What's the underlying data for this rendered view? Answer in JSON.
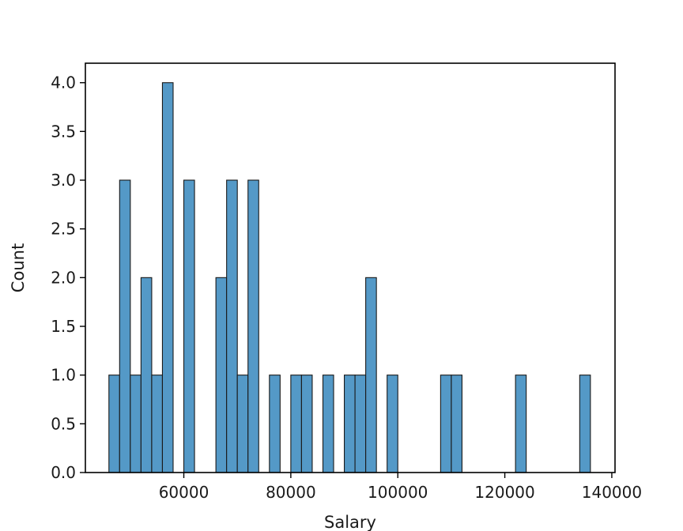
{
  "chart_data": {
    "type": "bar",
    "subtype": "histogram",
    "xlabel": "Salary",
    "ylabel": "Count",
    "xlim": [
      41600,
      140600
    ],
    "ylim": [
      0,
      4.2
    ],
    "xticks": [
      60000,
      80000,
      100000,
      120000,
      140000
    ],
    "yticks": [
      0.0,
      0.5,
      1.0,
      1.5,
      2.0,
      2.5,
      3.0,
      3.5,
      4.0
    ],
    "bin_width": 2000,
    "bar_color": "#5499c7",
    "edge_color": "#1a1a1a",
    "grid": false,
    "bins": [
      {
        "start": 46000,
        "count": 1
      },
      {
        "start": 48000,
        "count": 3
      },
      {
        "start": 50000,
        "count": 1
      },
      {
        "start": 52000,
        "count": 2
      },
      {
        "start": 54000,
        "count": 1
      },
      {
        "start": 56000,
        "count": 4
      },
      {
        "start": 60000,
        "count": 3
      },
      {
        "start": 66000,
        "count": 2
      },
      {
        "start": 68000,
        "count": 3
      },
      {
        "start": 70000,
        "count": 1
      },
      {
        "start": 72000,
        "count": 3
      },
      {
        "start": 76000,
        "count": 1
      },
      {
        "start": 80000,
        "count": 1
      },
      {
        "start": 82000,
        "count": 1
      },
      {
        "start": 86000,
        "count": 1
      },
      {
        "start": 90000,
        "count": 1
      },
      {
        "start": 92000,
        "count": 1
      },
      {
        "start": 94000,
        "count": 2
      },
      {
        "start": 98000,
        "count": 1
      },
      {
        "start": 108000,
        "count": 1
      },
      {
        "start": 110000,
        "count": 1
      },
      {
        "start": 122000,
        "count": 1
      },
      {
        "start": 134000,
        "count": 1
      }
    ]
  }
}
